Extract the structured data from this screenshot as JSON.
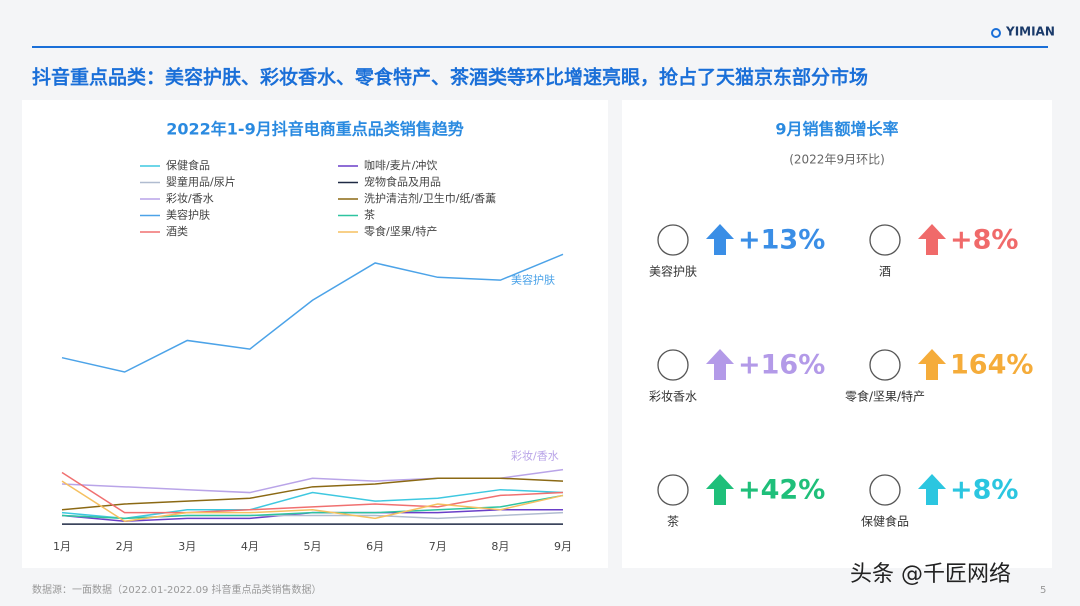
{
  "header": {
    "logo": "YIMIAN",
    "headline": "抖音重点品类：美容护肤、彩妆香水、零食特产、茶酒类等环比增速亮眼，抢占了天猫京东部分市场"
  },
  "chart_data": [
    {
      "type": "line",
      "title": "2022年1-9月抖音电商重点品类销售趋势",
      "categories": [
        "1月",
        "2月",
        "3月",
        "4月",
        "5月",
        "6月",
        "7月",
        "8月",
        "9月"
      ],
      "ylim": [
        0,
        100
      ],
      "series": [
        {
          "name": "保健食品",
          "color": "#3ec8e0",
          "values": [
            5,
            3,
            6,
            6,
            12,
            9,
            10,
            13,
            12
          ]
        },
        {
          "name": "咖啡/麦片/冲饮",
          "color": "#6a3fc8",
          "values": [
            4,
            2,
            3,
            3,
            5,
            5,
            5,
            6,
            6
          ]
        },
        {
          "name": "婴童用品/尿片",
          "color": "#b0bcd0",
          "values": [
            4,
            3,
            4,
            4,
            4,
            4,
            3,
            4,
            5
          ]
        },
        {
          "name": "宠物食品及用品",
          "color": "#1f2a44",
          "values": [
            1,
            1,
            1,
            1,
            1,
            1,
            1,
            1,
            1
          ]
        },
        {
          "name": "彩妆/香水",
          "color": "#b9a4e8",
          "values": [
            15,
            14,
            13,
            12,
            17,
            16,
            17,
            17,
            20
          ]
        },
        {
          "name": "洗护清洁剂/卫生巾/纸/香薰",
          "color": "#8b6914",
          "values": [
            6,
            8,
            9,
            10,
            14,
            15,
            17,
            17,
            16
          ]
        },
        {
          "name": "美容护肤",
          "color": "#4ca3e8",
          "values": [
            59,
            54,
            65,
            62,
            79,
            92,
            87,
            86,
            95
          ]
        },
        {
          "name": "茶",
          "color": "#2ec4a0",
          "values": [
            4,
            3,
            4,
            4,
            5,
            5,
            6,
            7,
            11
          ]
        },
        {
          "name": "酒类",
          "color": "#f07070",
          "values": [
            19,
            5,
            5,
            6,
            7,
            8,
            7,
            11,
            12
          ]
        },
        {
          "name": "零食/坚果/特产",
          "color": "#f5c060",
          "values": [
            16,
            2,
            5,
            5,
            6,
            3,
            8,
            6,
            11
          ]
        }
      ]
    },
    {
      "type": "stat",
      "title": "9月销售额增长率",
      "subtitle": "(2022年9月环比)",
      "categories": [
        "美容护肤",
        "酒",
        "彩妆香水",
        "零食/坚果/特产",
        "茶",
        "保健食品"
      ],
      "values": [
        13,
        8,
        16,
        164,
        42,
        8
      ],
      "value_labels": [
        "+13%",
        "+8%",
        "+16%",
        "164%",
        "+42%",
        "+8%"
      ],
      "colors": [
        "#3a8ee6",
        "#f06a6a",
        "#b39ae8",
        "#f5ac3a",
        "#1fbf7a",
        "#2bc6e0"
      ]
    }
  ],
  "footer": {
    "source": "数据源：一面数据（2022.01-2022.09 抖音重点品类销售数据）",
    "page": "5",
    "watermark": "头条 @千匠网络"
  }
}
